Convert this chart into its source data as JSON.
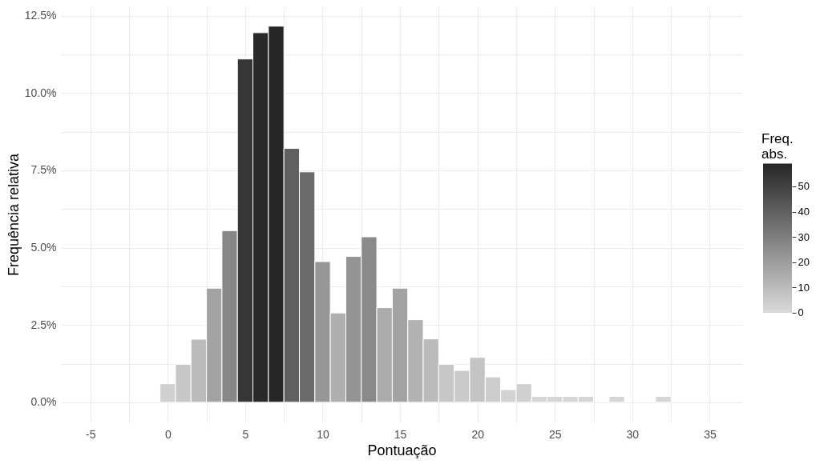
{
  "chart_data": {
    "type": "histogram",
    "xlabel": "Pontuação",
    "ylabel": "Frequência relativa",
    "legend_title": "Freq. abs.",
    "bins": [
      -0.5,
      0.5,
      1.5,
      2.5,
      3.5,
      4.5,
      5.5,
      6.5,
      7.5,
      8.5,
      9.5,
      10.5,
      11.5,
      12.5,
      13.5,
      14.5,
      15.5,
      16.5,
      17.5,
      18.5,
      19.5,
      20.5,
      21.5,
      22.5,
      23.5,
      24.5,
      25.5,
      26.5,
      27.5,
      28.5,
      29.5,
      30.5,
      31.5,
      32.5
    ],
    "values": [
      0.6,
      1.23,
      2.04,
      3.69,
      5.55,
      11.1,
      11.95,
      12.16,
      8.21,
      7.45,
      4.55,
      2.89,
      4.72,
      5.35,
      3.06,
      3.69,
      2.67,
      2.05,
      1.23,
      1.03,
      1.45,
      0.82,
      0.41,
      0.6,
      0.19,
      0.19,
      0.19,
      0.19,
      0,
      0.19,
      0,
      0,
      0.19
    ],
    "colors": [
      "#d0d0d0",
      "#c7c7c7",
      "#bbbbbb",
      "#a3a3a3",
      "#878787",
      "#363636",
      "#292929",
      "#262626",
      "#606060",
      "#6b6b6b",
      "#969696",
      "#afafaf",
      "#949494",
      "#8a8a8a",
      "#acacac",
      "#a3a3a3",
      "#b2b2b2",
      "#bbbbbb",
      "#c7c7c7",
      "#cacaca",
      "#c4c4c4",
      "#cdcdcd",
      "#d3d3d3",
      "#d0d0d0",
      "#d6d6d6",
      "#d6d6d6",
      "#d6d6d6",
      "#d6d6d6",
      null,
      "#d6d6d6",
      null,
      null,
      "#d6d6d6"
    ],
    "xlim": [
      -6.9,
      37.1
    ],
    "xticks": [
      {
        "value": -5,
        "label": "-5"
      },
      {
        "value": -2.5,
        "label": null
      },
      {
        "value": 0,
        "label": "0"
      },
      {
        "value": 2.5,
        "label": null
      },
      {
        "value": 5,
        "label": "5"
      },
      {
        "value": 7.5,
        "label": null
      },
      {
        "value": 10,
        "label": "10"
      },
      {
        "value": 12.5,
        "label": null
      },
      {
        "value": 15,
        "label": "15"
      },
      {
        "value": 17.5,
        "label": null
      },
      {
        "value": 20,
        "label": "20"
      },
      {
        "value": 22.5,
        "label": null
      },
      {
        "value": 25,
        "label": "25"
      },
      {
        "value": 27.5,
        "label": null
      },
      {
        "value": 30,
        "label": "30"
      },
      {
        "value": 32.5,
        "label": null
      },
      {
        "value": 35,
        "label": "35"
      }
    ],
    "ylim": [
      -0.65,
      12.8
    ],
    "yticks": [
      {
        "value": 0,
        "label": "0.0%"
      },
      {
        "value": 1.25,
        "label": null
      },
      {
        "value": 2.5,
        "label": "2.5%"
      },
      {
        "value": 3.75,
        "label": null
      },
      {
        "value": 5,
        "label": "5.0%"
      },
      {
        "value": 6.25,
        "label": null
      },
      {
        "value": 7.5,
        "label": "7.5%"
      },
      {
        "value": 8.75,
        "label": null
      },
      {
        "value": 10,
        "label": "10.0%"
      },
      {
        "value": 11.25,
        "label": null
      },
      {
        "value": 12.5,
        "label": "12.5%"
      }
    ],
    "clim": [
      0,
      59
    ],
    "cticks": [
      0,
      10,
      20,
      30,
      40,
      50
    ],
    "grid": true
  }
}
